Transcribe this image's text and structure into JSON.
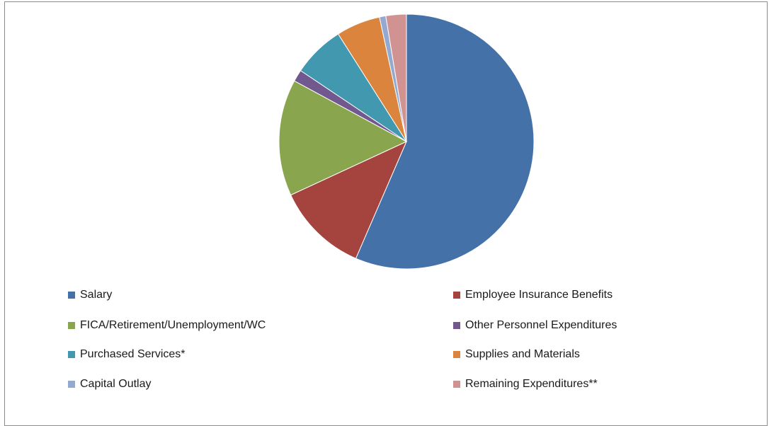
{
  "chart_data": {
    "type": "pie",
    "title": "",
    "start_angle_deg": 0,
    "direction": "clockwise",
    "legend_position": "bottom",
    "slices": [
      {
        "label": "Salary",
        "value": 56.5,
        "color": "#4472a8"
      },
      {
        "label": "Employee Insurance Benefits",
        "value": 11.6,
        "color": "#a5443f"
      },
      {
        "label": "FICA/Retirement/Unemployment/WC",
        "value": 14.8,
        "color": "#89a54e"
      },
      {
        "label": "Other Personnel Expenditures",
        "value": 1.5,
        "color": "#71588f"
      },
      {
        "label": "Purchased Services*",
        "value": 6.6,
        "color": "#4198af"
      },
      {
        "label": "Supplies and Materials",
        "value": 5.6,
        "color": "#db843d"
      },
      {
        "label": "Capital Outlay",
        "value": 0.8,
        "color": "#93a9cf"
      },
      {
        "label": "Remaining Expenditures**",
        "value": 2.6,
        "color": "#d19392"
      }
    ]
  }
}
